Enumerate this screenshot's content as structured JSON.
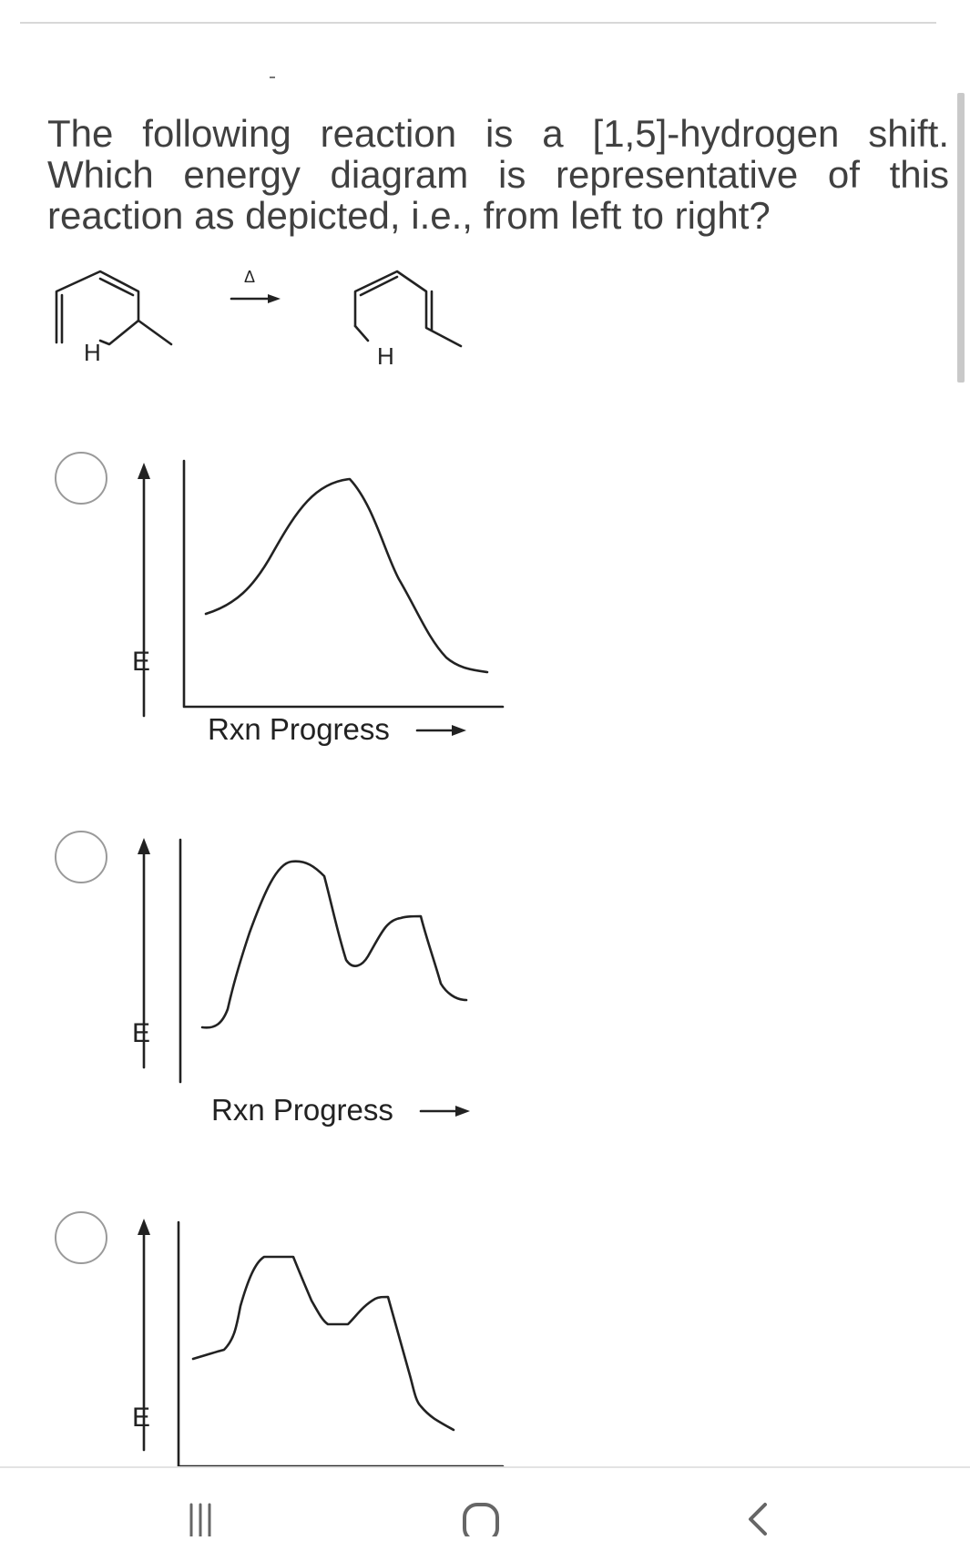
{
  "question": {
    "text": "The following reaction is a [1,5]-hydrogen shift. Which energy diagram is representative of this reaction as depicted, i.e., from left to right?"
  },
  "reaction": {
    "reactant_h_label": "H",
    "product_h_label": "H",
    "heat_symbol": "Δ"
  },
  "options": [
    {
      "y_label": "E",
      "x_label": "Rxn Progress",
      "curve": "single-peak"
    },
    {
      "y_label": "E",
      "x_label": "Rxn Progress",
      "curve": "two-peaks-product-higher"
    },
    {
      "y_label": "E",
      "x_label": "",
      "curve": "two-peaks-product-lower"
    }
  ],
  "navbar": {
    "recents_icon": "recent-apps-icon",
    "home_icon": "home-icon",
    "back_icon": "back-icon"
  },
  "colors": {
    "text": "#404040",
    "line": "#222222",
    "radio_border": "#9a9a9a"
  }
}
